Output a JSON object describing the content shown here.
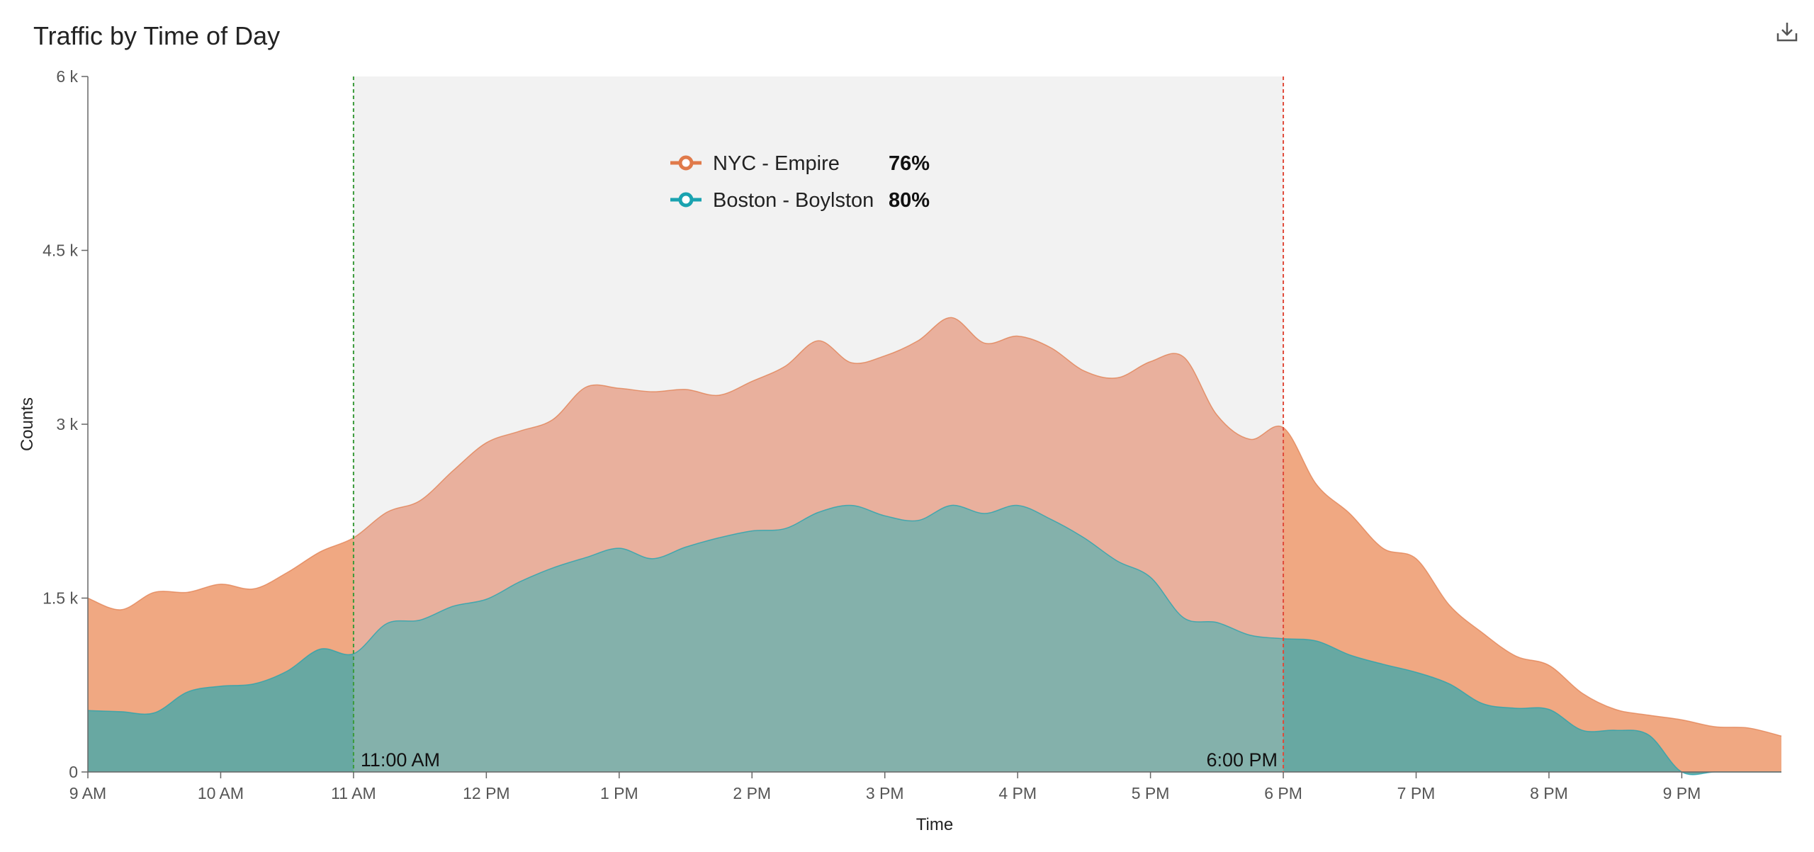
{
  "title": "Traffic by Time of Day",
  "download_icon": "download-icon",
  "chart_data": {
    "type": "area",
    "title": "Traffic by Time of Day",
    "xlabel": "Time",
    "ylabel": "Counts",
    "xlim": [
      9,
      21.75
    ],
    "ylim": [
      0,
      6000
    ],
    "x_ticks": [
      9,
      10,
      11,
      12,
      13,
      14,
      15,
      16,
      17,
      18,
      19,
      20,
      21
    ],
    "x_tick_labels": [
      "9 AM",
      "10 AM",
      "11 AM",
      "12 PM",
      "1 PM",
      "2 PM",
      "3 PM",
      "4 PM",
      "5 PM",
      "6 PM",
      "7 PM",
      "8 PM",
      "9 PM"
    ],
    "y_ticks": [
      0,
      1500,
      3000,
      4500,
      6000
    ],
    "y_tick_labels": [
      "0",
      "1.5 k",
      "3 k",
      "4.5 k",
      "6 k"
    ],
    "grid": false,
    "legend": "top-center",
    "highlight_range": {
      "start": 11,
      "end": 18,
      "start_label": "11:00 AM",
      "end_label": "6:00 PM",
      "start_color": "#3a9a3a",
      "end_color": "#e04a3a",
      "fill_color": "#f2f2f2"
    },
    "series": [
      {
        "name": "NYC - Empire",
        "percent": "76%",
        "color": "#e07a4a",
        "fill": "#f0a882",
        "fill_in_range": "#e9b09d",
        "x": [
          9,
          9.25,
          9.5,
          9.75,
          10,
          10.25,
          10.5,
          10.75,
          11,
          11.25,
          11.5,
          11.75,
          12,
          12.25,
          12.5,
          12.75,
          13,
          13.25,
          13.5,
          13.75,
          14,
          14.25,
          14.5,
          14.75,
          15,
          15.25,
          15.5,
          15.75,
          16,
          16.25,
          16.5,
          16.75,
          17,
          17.25,
          17.5,
          17.75,
          18,
          18.25,
          18.5,
          18.75,
          19,
          19.25,
          19.5,
          19.75,
          20,
          20.25,
          20.5,
          20.75,
          21,
          21.25,
          21.5,
          21.75
        ],
        "values": [
          1500,
          1400,
          1550,
          1550,
          1620,
          1580,
          1720,
          1900,
          2020,
          2240,
          2340,
          2600,
          2840,
          2940,
          3040,
          3320,
          3310,
          3280,
          3300,
          3250,
          3370,
          3500,
          3720,
          3530,
          3590,
          3720,
          3920,
          3700,
          3760,
          3660,
          3460,
          3400,
          3540,
          3580,
          3080,
          2870,
          2970,
          2480,
          2230,
          1930,
          1840,
          1440,
          1200,
          1000,
          920,
          680,
          540,
          490,
          450,
          390,
          380,
          310
        ]
      },
      {
        "name": "Boston - Boylston",
        "percent": "80%",
        "color": "#1aa3b0",
        "fill": "#68a8a2",
        "fill_in_range": "#84b1ab",
        "x": [
          9,
          9.25,
          9.5,
          9.75,
          10,
          10.25,
          10.5,
          10.75,
          11,
          11.25,
          11.5,
          11.75,
          12,
          12.25,
          12.5,
          12.75,
          13,
          13.25,
          13.5,
          13.75,
          14,
          14.25,
          14.5,
          14.75,
          15,
          15.25,
          15.5,
          15.75,
          16,
          16.25,
          16.5,
          16.75,
          17,
          17.25,
          17.5,
          17.75,
          18,
          18.25,
          18.5,
          18.75,
          19,
          19.25,
          19.5,
          19.75,
          20,
          20.25,
          20.5,
          20.75,
          21,
          21.25,
          21.5,
          21.75
        ],
        "values": [
          530,
          520,
          510,
          690,
          740,
          760,
          870,
          1060,
          1020,
          1280,
          1310,
          1430,
          1490,
          1640,
          1760,
          1850,
          1930,
          1840,
          1940,
          2020,
          2080,
          2100,
          2240,
          2300,
          2210,
          2170,
          2300,
          2230,
          2300,
          2180,
          2020,
          1820,
          1680,
          1330,
          1290,
          1180,
          1150,
          1130,
          1010,
          930,
          860,
          760,
          590,
          550,
          540,
          360,
          360,
          320,
          0,
          0,
          0,
          0
        ]
      }
    ]
  }
}
